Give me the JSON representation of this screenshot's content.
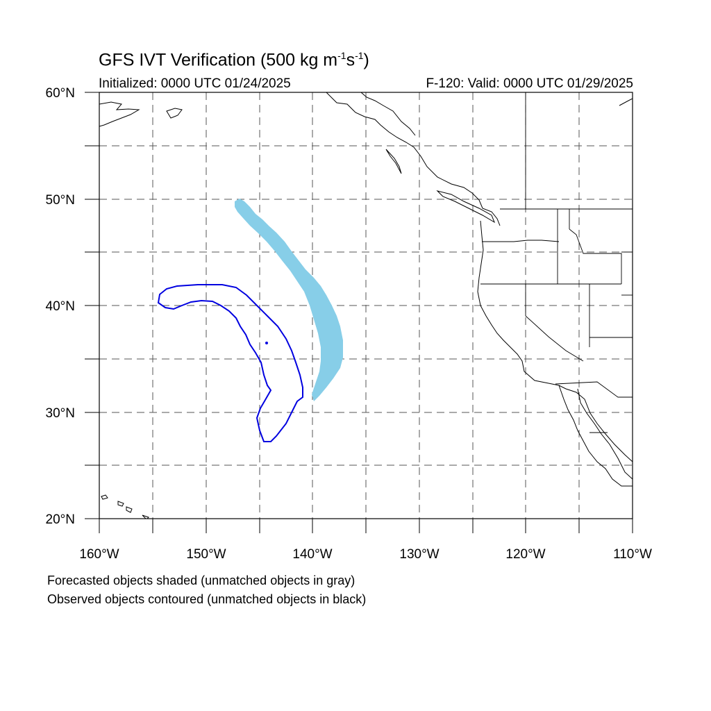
{
  "title": {
    "main": "GFS IVT Verification (500 kg m",
    "sup1": "-1",
    "mid": "s",
    "sup2": "-1",
    "end": ")"
  },
  "initialized": "Initialized: 0000 UTC 01/24/2025",
  "valid": "F-120: Valid: 0000 UTC 01/29/2025",
  "axes": {
    "lat_labels": [
      "60°N",
      "50°N",
      "40°N",
      "30°N",
      "20°N"
    ],
    "lon_labels": [
      "160°W",
      "150°W",
      "140°W",
      "130°W",
      "120°W",
      "110°W"
    ]
  },
  "map_extent": {
    "lon_min": -160,
    "lon_max": -110,
    "lat_min": 20,
    "lat_max": 60
  },
  "legend": {
    "forecast_note": "Forecasted objects shaded (unmatched objects in gray)",
    "observed_note": "Observed objects contoured (unmatched objects in black)"
  },
  "colors": {
    "forecast_fill": "#87CEE8",
    "observed_contour": "#0000E0",
    "grid": "#555555",
    "coast": "#000000"
  },
  "objects": {
    "forecast": "matched forecast IVT object",
    "observed": "matched observed IVT object"
  }
}
